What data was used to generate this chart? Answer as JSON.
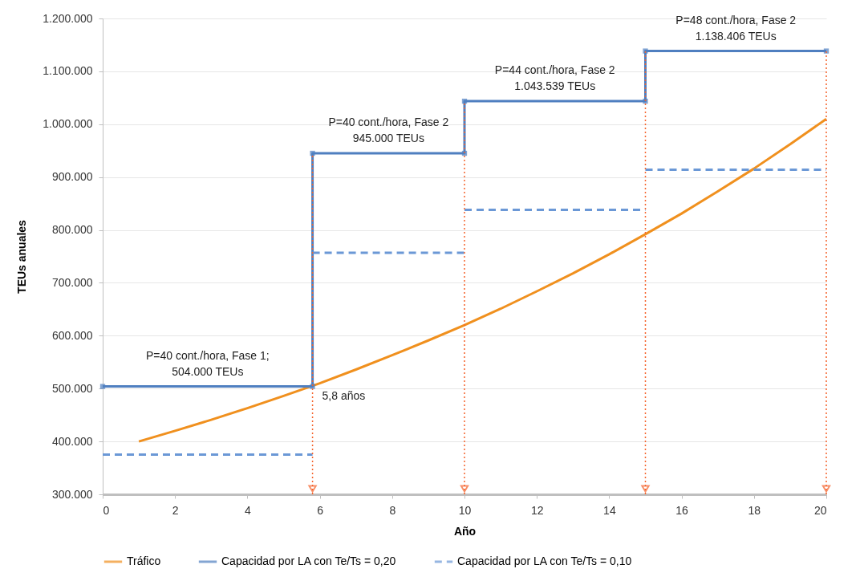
{
  "chart_data": {
    "type": "line",
    "xlabel": "Año",
    "ylabel": "TEUs anuales",
    "xlim": [
      0,
      20
    ],
    "xticks": [
      0,
      2,
      4,
      6,
      8,
      10,
      12,
      14,
      16,
      18,
      20
    ],
    "ylim": [
      300000,
      1200000
    ],
    "yticks": [
      {
        "value": 300000,
        "label": "300.000"
      },
      {
        "value": 400000,
        "label": "400.000"
      },
      {
        "value": 500000,
        "label": "500.000"
      },
      {
        "value": 600000,
        "label": "600.000"
      },
      {
        "value": 700000,
        "label": "700.000"
      },
      {
        "value": 800000,
        "label": "800.000"
      },
      {
        "value": 900000,
        "label": "900.000"
      },
      {
        "value": 1000000,
        "label": "1.000.000"
      },
      {
        "value": 1100000,
        "label": "1.100.000"
      },
      {
        "value": 1200000,
        "label": "1.200.000"
      }
    ],
    "grid": "y",
    "legend": "bottom",
    "series": [
      {
        "name": "Tráfico",
        "color": "#f0901e",
        "line_style": "solid",
        "marker": "none",
        "x": [
          1,
          2,
          3,
          4,
          5,
          6,
          7,
          8,
          9,
          10,
          11,
          12,
          13,
          14,
          15,
          16,
          17,
          18,
          19,
          20
        ],
        "values": [
          400000,
          420000,
          441000,
          463000,
          486000,
          510000,
          536000,
          563000,
          591000,
          620000,
          651000,
          684000,
          718000,
          754000,
          792000,
          831000,
          873000,
          916000,
          962000,
          1010000
        ]
      },
      {
        "name": "Capacidad por LA con Te/Ts = 0,20",
        "color": "#4f7fc0",
        "line_style": "solid",
        "marker": "square",
        "x": [
          0,
          5.8,
          5.8,
          10,
          10,
          15,
          15,
          20
        ],
        "values": [
          504000,
          504000,
          945000,
          945000,
          1043539,
          1043539,
          1138406,
          1138406
        ]
      },
      {
        "name": "Capacidad por LA con Te/Ts = 0,10",
        "color": "#6b98d6",
        "line_style": "dashed",
        "marker": "none",
        "x": [
          0,
          5.8
        ],
        "values": [
          375000,
          375000
        ]
      },
      {
        "color": "#6b98d6",
        "line_style": "dashed",
        "marker": "none",
        "x": [
          5.8,
          10
        ],
        "values": [
          757000,
          757000
        ]
      },
      {
        "color": "#6b98d6",
        "line_style": "dashed",
        "marker": "none",
        "x": [
          10,
          15
        ],
        "values": [
          838000,
          838000
        ]
      },
      {
        "color": "#6b98d6",
        "line_style": "dashed",
        "marker": "none",
        "x": [
          15,
          20
        ],
        "values": [
          914000,
          914000
        ]
      }
    ],
    "ref_lines": [
      {
        "axis": "x",
        "value": 5.8,
        "color": "#f5622a",
        "line_style": "dotted"
      },
      {
        "axis": "x",
        "value": 10,
        "color": "#f5622a",
        "line_style": "dotted"
      },
      {
        "axis": "x",
        "value": 15,
        "color": "#f5622a",
        "line_style": "dotted"
      },
      {
        "axis": "x",
        "value": 20,
        "color": "#f5622a",
        "line_style": "dotted"
      }
    ],
    "annotations": [
      {
        "text": "P=40 cont./hora, Fase 1;\n504.000 TEUs",
        "x": 2.9,
        "y": 504000
      },
      {
        "text": "P=40 cont./hora, Fase 2\n945.000 TEUs",
        "x": 7.9,
        "y": 945000
      },
      {
        "text": "P=44 cont./hora, Fase 2\n1.043.539 TEUs",
        "x": 12.5,
        "y": 1043539
      },
      {
        "text": "P=48 cont./hora, Fase 2\n1.138.406 TEUs",
        "x": 17.5,
        "y": 1138406
      },
      {
        "text": "5,8 años",
        "x": 5.8,
        "y": 504000
      }
    ]
  }
}
